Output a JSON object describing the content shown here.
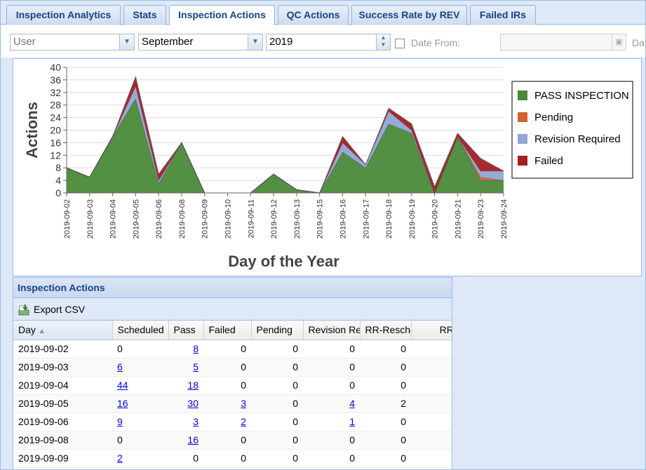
{
  "tabs": [
    {
      "label": "Inspection Analytics",
      "active": false
    },
    {
      "label": "Stats",
      "active": false
    },
    {
      "label": "Inspection Actions",
      "active": true
    },
    {
      "label": "QC Actions",
      "active": false
    },
    {
      "label": "Success Rate by REV",
      "active": false
    },
    {
      "label": "Failed IRs",
      "active": false
    }
  ],
  "filters": {
    "user": "User",
    "month": "September",
    "year": "2019",
    "date_from_label": "Date From:",
    "date_to_label_partial": "Dat"
  },
  "chart_data": {
    "type": "area",
    "stacked": true,
    "xlabel": "Day of the Year",
    "ylabel": "Actions",
    "ylim": [
      0,
      40
    ],
    "yticks": [
      0,
      4,
      8,
      12,
      16,
      20,
      24,
      28,
      32,
      36,
      40
    ],
    "grid": true,
    "legend_position": "right",
    "categories": [
      "2019-09-02",
      "2019-09-03",
      "2019-09-04",
      "2019-09-05",
      "2019-09-06",
      "2019-09-08",
      "2019-09-09",
      "2019-09-10",
      "2019-09-11",
      "2019-09-12",
      "2019-09-13",
      "2019-09-15",
      "2019-09-16",
      "2019-09-17",
      "2019-09-18",
      "2019-09-19",
      "2019-09-20",
      "2019-09-21",
      "2019-09-23",
      "2019-09-24"
    ],
    "series": [
      {
        "name": "PASS INSPECTION",
        "color": "#4a8a3a",
        "values": [
          8,
          5,
          18,
          30,
          3,
          16,
          0,
          0,
          0,
          6,
          1,
          0,
          13,
          8,
          22,
          19,
          0,
          18,
          4,
          4
        ]
      },
      {
        "name": "Pending",
        "color": "#d2632a",
        "values": [
          0,
          0,
          0,
          0,
          0,
          0,
          0,
          0,
          0,
          0,
          0,
          0,
          0,
          0,
          0,
          0,
          0,
          0,
          1,
          0
        ]
      },
      {
        "name": "Revision Required",
        "color": "#8fa6d4",
        "values": [
          0,
          0,
          0,
          4,
          1,
          0,
          0,
          0,
          0,
          0,
          0,
          0,
          3,
          1,
          4,
          1,
          0,
          0,
          2,
          3
        ]
      },
      {
        "name": "Failed",
        "color": "#a41e22",
        "values": [
          0,
          0,
          0,
          3,
          2,
          0,
          0,
          0,
          0,
          0,
          0,
          0,
          2,
          0,
          1,
          2,
          2,
          1,
          4,
          0
        ]
      }
    ]
  },
  "grid": {
    "title": "Inspection Actions",
    "export_label": "Export CSV",
    "columns": [
      "Day",
      "Scheduled",
      "Pass",
      "Failed",
      "Pending",
      "Revision Rec",
      "RR-Resche",
      "RR-"
    ],
    "rows": [
      {
        "day": "2019-09-02",
        "scheduled": "0",
        "pass": "8",
        "failed": "0",
        "pending": "0",
        "revision": "0",
        "rr": "0"
      },
      {
        "day": "2019-09-03",
        "scheduled": "6",
        "pass": "5",
        "failed": "0",
        "pending": "0",
        "revision": "0",
        "rr": "0"
      },
      {
        "day": "2019-09-04",
        "scheduled": "44",
        "pass": "18",
        "failed": "0",
        "pending": "0",
        "revision": "0",
        "rr": "0"
      },
      {
        "day": "2019-09-05",
        "scheduled": "16",
        "pass": "30",
        "failed": "3",
        "pending": "0",
        "revision": "4",
        "rr": "2"
      },
      {
        "day": "2019-09-06",
        "scheduled": "9",
        "pass": "3",
        "failed": "2",
        "pending": "0",
        "revision": "1",
        "rr": "0"
      },
      {
        "day": "2019-09-08",
        "scheduled": "0",
        "pass": "16",
        "failed": "0",
        "pending": "0",
        "revision": "0",
        "rr": "0"
      },
      {
        "day": "2019-09-09",
        "scheduled": "2",
        "pass": "0",
        "failed": "0",
        "pending": "0",
        "revision": "0",
        "rr": "0"
      }
    ]
  }
}
